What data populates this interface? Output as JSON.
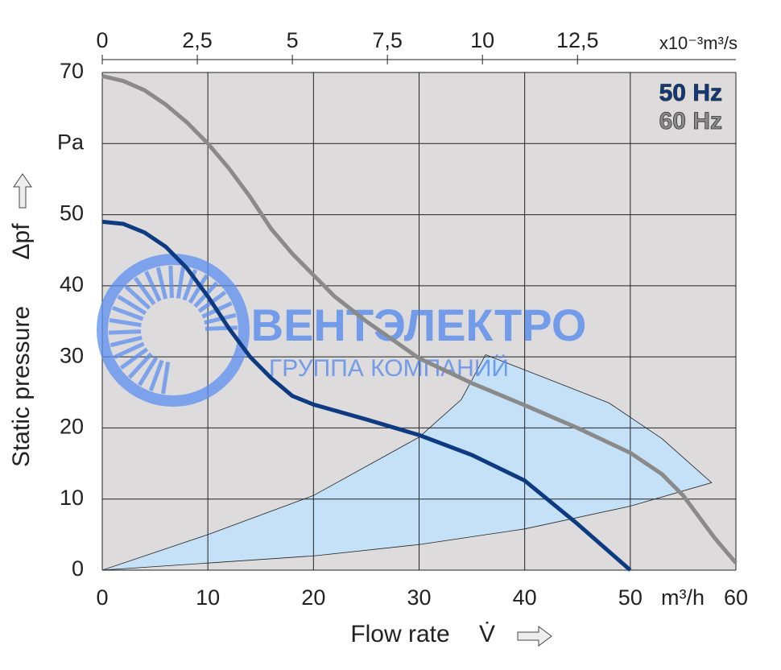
{
  "chart_data": {
    "type": "line",
    "x_label": "Flow rate",
    "x_symbol": "V̇",
    "x_unit": "m³/h",
    "y_label": "Static pressure",
    "y_symbol": "Δpf",
    "x2_unit": "x10⁻³m³/s",
    "xlim": [
      0,
      60
    ],
    "xticks": [
      0,
      10,
      20,
      30,
      40,
      50,
      60
    ],
    "ylim": [
      0,
      70
    ],
    "yticks": [
      0,
      10,
      20,
      30,
      40,
      50,
      {
        "value": 60,
        "label": "Pa"
      },
      70
    ],
    "x2lim": [
      0,
      16.667
    ],
    "x2ticks": [
      0,
      {
        "value": 2.5,
        "label": "2,5"
      },
      5,
      {
        "value": 7.5,
        "label": "7,5"
      },
      10,
      {
        "value": 12.5,
        "label": "12,5"
      }
    ],
    "grid": true,
    "operating_area": {
      "color": "#c4e1f7",
      "x": [
        0,
        10,
        20,
        30,
        34,
        36.3,
        42,
        48,
        53,
        57.7,
        50,
        40,
        30,
        20,
        10,
        0
      ],
      "y": [
        0,
        5,
        10.5,
        18.7,
        24,
        30.3,
        27,
        23.5,
        18.5,
        12.3,
        9,
        5.8,
        3.6,
        2,
        1,
        0
      ]
    },
    "series": [
      {
        "name": "50 Hz",
        "color": "#0d3a80",
        "x": [
          0,
          2,
          4,
          6,
          8,
          10,
          12,
          14,
          16,
          18,
          20,
          25,
          30,
          35,
          40,
          45,
          50
        ],
        "values": [
          49,
          48.7,
          47.5,
          45.5,
          42.5,
          38.5,
          34,
          30,
          27,
          24.5,
          23.3,
          21.2,
          19,
          16.2,
          12.6,
          6.5,
          0
        ]
      },
      {
        "name": "60 Hz",
        "color": "#8a8a8a",
        "x": [
          0,
          2,
          4,
          6,
          8,
          10,
          12,
          14,
          16,
          18,
          20,
          22,
          25,
          30,
          35,
          40,
          45,
          50,
          53,
          55,
          57,
          58,
          60
        ],
        "values": [
          69.5,
          68.8,
          67.5,
          65.5,
          63,
          60,
          56.5,
          52.5,
          48,
          44.5,
          41.5,
          38.5,
          35,
          29.8,
          26.3,
          23.2,
          20,
          16.5,
          13.5,
          10.5,
          6.5,
          4.5,
          1
        ]
      }
    ],
    "watermark": {
      "title": "ВЕНТЭЛЕКТРО",
      "subtitle": "ГРУППА КОМПАНИЙ"
    }
  }
}
